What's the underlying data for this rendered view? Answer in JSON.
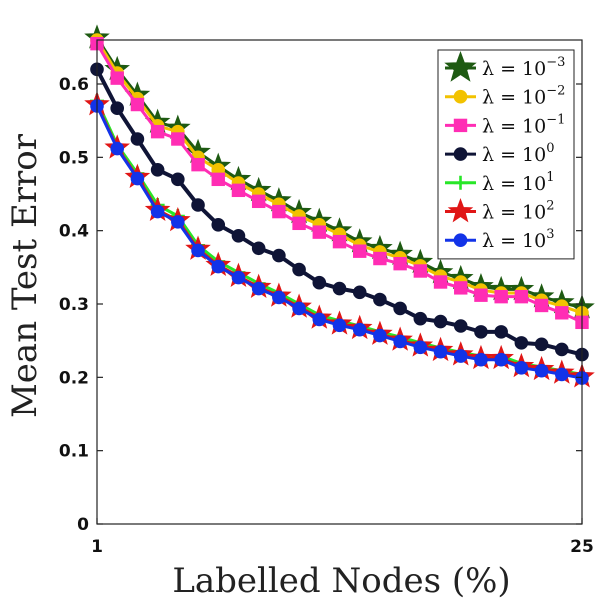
{
  "chart_data": {
    "type": "line",
    "xlabel": "Labelled Nodes (%)",
    "ylabel": "Mean Test Error",
    "xlim": [
      1,
      25
    ],
    "ylim": [
      0,
      0.66
    ],
    "xticks": [
      1,
      25
    ],
    "xtick_labels": [
      "1",
      "25"
    ],
    "yticks": [
      0,
      0.1,
      0.2,
      0.3,
      0.4,
      0.5,
      0.6
    ],
    "ytick_labels": [
      "0",
      "0.1",
      "0.2",
      "0.3",
      "0.4",
      "0.5",
      "0.6"
    ],
    "legend_position": "top-right",
    "grid": false,
    "x": [
      1,
      2,
      3,
      4,
      5,
      6,
      7,
      8,
      9,
      10,
      11,
      12,
      13,
      14,
      15,
      16,
      17,
      18,
      19,
      20,
      21,
      22,
      23,
      24,
      25
    ],
    "series": [
      {
        "name_base": "λ = 10",
        "name_exp": "−3",
        "color": "#1e5a12",
        "marker": "star",
        "values": [
          0.663,
          0.62,
          0.585,
          0.548,
          0.54,
          0.507,
          0.488,
          0.47,
          0.455,
          0.441,
          0.425,
          0.413,
          0.4,
          0.385,
          0.376,
          0.368,
          0.357,
          0.343,
          0.335,
          0.324,
          0.32,
          0.32,
          0.31,
          0.302,
          0.295
        ]
      },
      {
        "name_base": "λ = 10",
        "name_exp": "−2",
        "color": "#f2c200",
        "marker": "circle",
        "values": [
          0.66,
          0.615,
          0.58,
          0.543,
          0.535,
          0.5,
          0.483,
          0.465,
          0.45,
          0.436,
          0.42,
          0.408,
          0.395,
          0.38,
          0.371,
          0.363,
          0.352,
          0.338,
          0.33,
          0.319,
          0.315,
          0.315,
          0.305,
          0.297,
          0.288
        ]
      },
      {
        "name_base": "λ = 10",
        "name_exp": "−1",
        "color": "#ff2db4",
        "marker": "square",
        "values": [
          0.655,
          0.608,
          0.572,
          0.535,
          0.525,
          0.49,
          0.47,
          0.455,
          0.44,
          0.426,
          0.41,
          0.398,
          0.385,
          0.372,
          0.362,
          0.355,
          0.345,
          0.33,
          0.322,
          0.312,
          0.31,
          0.31,
          0.298,
          0.288,
          0.275
        ]
      },
      {
        "name_base": "λ = 10",
        "name_exp": "0",
        "color": "#0f1436",
        "marker": "circle",
        "values": [
          0.62,
          0.567,
          0.525,
          0.483,
          0.47,
          0.435,
          0.408,
          0.393,
          0.376,
          0.366,
          0.347,
          0.329,
          0.321,
          0.316,
          0.306,
          0.294,
          0.28,
          0.276,
          0.27,
          0.262,
          0.262,
          0.247,
          0.245,
          0.238,
          0.231
        ]
      },
      {
        "name_base": "λ = 10",
        "name_exp": "1",
        "color": "#27e627",
        "marker": "plus",
        "values": [
          0.577,
          0.517,
          0.478,
          0.435,
          0.42,
          0.38,
          0.358,
          0.343,
          0.328,
          0.315,
          0.3,
          0.285,
          0.277,
          0.27,
          0.262,
          0.255,
          0.247,
          0.24,
          0.234,
          0.229,
          0.229,
          0.219,
          0.214,
          0.209,
          0.204
        ]
      },
      {
        "name_base": "λ = 10",
        "name_exp": "2",
        "color": "#e01616",
        "marker": "star",
        "values": [
          0.572,
          0.513,
          0.473,
          0.428,
          0.414,
          0.375,
          0.353,
          0.338,
          0.323,
          0.311,
          0.296,
          0.281,
          0.273,
          0.267,
          0.259,
          0.251,
          0.243,
          0.237,
          0.231,
          0.226,
          0.226,
          0.215,
          0.211,
          0.206,
          0.201
        ]
      },
      {
        "name_base": "λ = 10",
        "name_exp": "3",
        "color": "#1233e8",
        "marker": "circle",
        "values": [
          0.57,
          0.512,
          0.471,
          0.426,
          0.412,
          0.373,
          0.351,
          0.336,
          0.321,
          0.309,
          0.294,
          0.279,
          0.271,
          0.265,
          0.257,
          0.249,
          0.241,
          0.235,
          0.229,
          0.224,
          0.224,
          0.213,
          0.209,
          0.204,
          0.199
        ]
      }
    ]
  }
}
